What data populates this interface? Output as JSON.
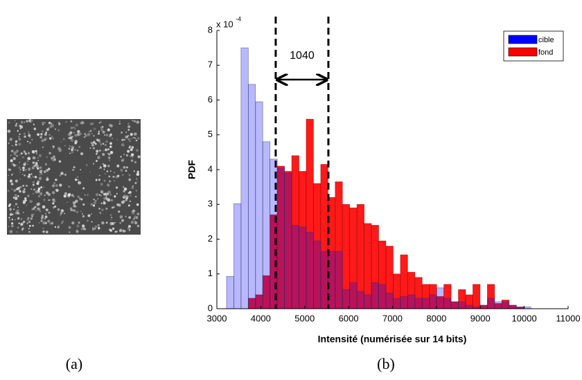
{
  "panel_labels": [
    "(a)",
    "(b)"
  ],
  "chart_data": {
    "type": "histogram",
    "multiplier_base": "x 10",
    "multiplier_exponent": "-4",
    "x_label": "Intensité (numérisée sur 14 bits)",
    "y_label": "PDF",
    "bins": [
      3220,
      3385,
      3550,
      3715,
      3880,
      4045,
      4210,
      4375,
      4540,
      4705,
      4870,
      5035,
      5200,
      5365,
      5530,
      5695,
      5860,
      6025,
      6190,
      6355,
      6520,
      6685,
      6850,
      7015,
      7180,
      7345,
      7510,
      7675,
      7840,
      8005,
      8170,
      8335,
      8500,
      8665,
      8830,
      8995,
      9160,
      9325,
      9490,
      9655,
      9820,
      9985,
      10150
    ],
    "series": [
      {
        "name": "fond",
        "color": "#ff0000",
        "values": [
          0,
          0,
          0,
          0.3,
          0.4,
          0.95,
          2.7,
          4.1,
          3.95,
          4.4,
          3.95,
          5.45,
          3.6,
          4.15,
          3.2,
          3.65,
          3.0,
          2.9,
          3.0,
          2.45,
          2.4,
          1.95,
          1.8,
          1.0,
          1.55,
          1.05,
          0.9,
          0.7,
          0.7,
          0.35,
          0.7,
          0.2,
          0.55,
          0.4,
          0.7,
          0.1,
          0.7,
          0.15,
          0.25,
          0.1,
          0.05,
          0
        ]
      },
      {
        "name": "cible",
        "color": "#0000ff",
        "values": [
          0.93,
          3.02,
          7.5,
          6.45,
          5.95,
          4.8,
          4.3,
          4.05,
          3.9,
          2.4,
          2.35,
          2.2,
          1.95,
          1.65,
          1.65,
          1.65,
          0.55,
          0.75,
          0.5,
          0.4,
          0.75,
          0.7,
          0.45,
          0.3,
          0.35,
          0.4,
          0.3,
          0.3,
          0.4,
          0.6,
          0.3,
          0.2,
          0.2,
          0.1,
          0.05,
          0.1,
          0.3,
          0.2,
          0.2,
          0.1,
          0.05,
          0.05
        ]
      }
    ],
    "vlines": [
      4340,
      5540
    ],
    "annotation": "1040",
    "xlim": [
      3000,
      11000
    ],
    "xticks": [
      3000,
      4000,
      5000,
      6000,
      7000,
      8000,
      9000,
      10000,
      11000
    ],
    "ylim": [
      0,
      8
    ],
    "yticks": [
      0,
      1,
      2,
      3,
      4,
      5,
      6,
      7,
      8
    ],
    "legend": "upper right"
  }
}
